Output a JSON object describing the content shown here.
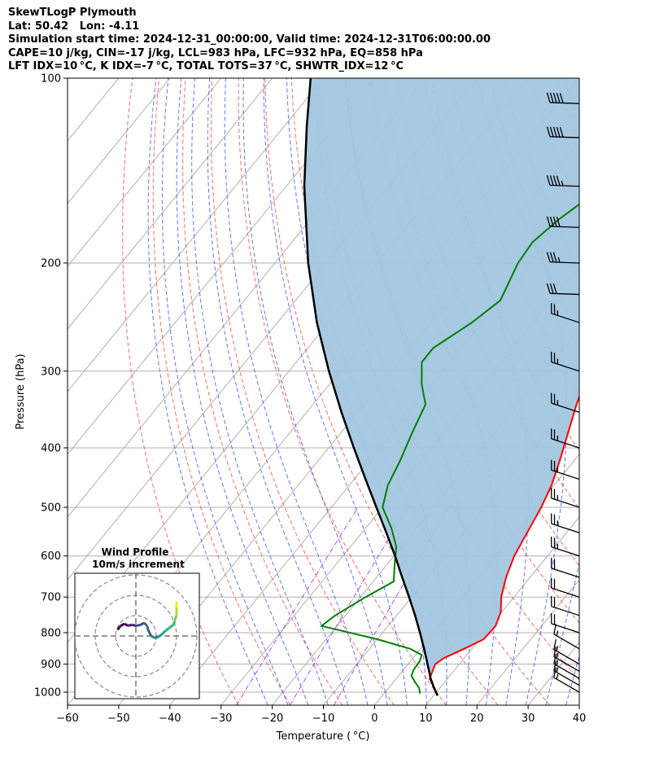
{
  "header": {
    "title": "SkewTLogP Plymouth",
    "location": "Lat: 50.42   Lon: -4.11",
    "times": "Simulation start time: 2024-12-31_00:00:00, Valid time: 2024-12-31T06:00:00.00",
    "indices1": "CAPE=10 j/kg, CIN=-17 j/kg, LCL=983 hPa, LFC=932 hPa, EQ=858 hPa",
    "indices2": "LFT IDX=10 °C, K IDX=-7 °C, TOTAL TOTS=37 °C, SHWTR_IDX=12 °C"
  },
  "chart_data": {
    "type": "line",
    "xlabel": "Temperature ( °C)",
    "ylabel": "Pressure (hPa)",
    "xlim": [
      -60,
      40
    ],
    "ylim": [
      1050,
      100
    ],
    "y_scale": "log",
    "x_ticks": [
      -60,
      -50,
      -40,
      -30,
      -20,
      -10,
      0,
      10,
      20,
      30,
      40
    ],
    "x_tick_labels": [
      "−60",
      "−50",
      "−40",
      "−30",
      "−20",
      "−10",
      "0",
      "10",
      "20",
      "30",
      "40"
    ],
    "y_ticks": [
      1000,
      900,
      800,
      700,
      600,
      500,
      400,
      300,
      200,
      100
    ],
    "grid": true,
    "colors": {
      "temperature": "#ff0000",
      "dewpoint": "#008000",
      "parcel": "#000000",
      "cape_fill": "#a3c6e0",
      "dry_adiabat": "#ff4444",
      "moist_adiabat": "#3344ff",
      "mixing_ratio": "#9933cc",
      "isotherm": "#999999"
    },
    "series": [
      {
        "role": "temperature",
        "points": [
          [
            1013,
            10.8
          ],
          [
            985,
            9.0
          ],
          [
            950,
            6.5
          ],
          [
            900,
            5.3
          ],
          [
            880,
            6.0
          ],
          [
            850,
            8.5
          ],
          [
            820,
            10.8
          ],
          [
            780,
            11.0
          ],
          [
            740,
            9.8
          ],
          [
            700,
            7.5
          ],
          [
            650,
            5.3
          ],
          [
            600,
            3.5
          ],
          [
            550,
            2.3
          ],
          [
            500,
            1.0
          ],
          [
            460,
            -0.5
          ],
          [
            420,
            -2.8
          ],
          [
            380,
            -5.5
          ],
          [
            340,
            -8.5
          ],
          [
            300,
            -11.5
          ],
          [
            270,
            -14.0
          ],
          [
            240,
            -16.5
          ],
          [
            215,
            -19.0
          ],
          [
            195,
            -20.2
          ],
          [
            180,
            -18.8
          ],
          [
            165,
            -15.0
          ],
          [
            150,
            -11.0
          ],
          [
            140,
            -9.5
          ],
          [
            130,
            -8.5
          ],
          [
            115,
            -6.5
          ],
          [
            100,
            -2.5
          ]
        ]
      },
      {
        "role": "dewpoint",
        "points": [
          [
            1005,
            7.0
          ],
          [
            985,
            6.0
          ],
          [
            960,
            4.0
          ],
          [
            940,
            2.5
          ],
          [
            920,
            2.0
          ],
          [
            890,
            1.8
          ],
          [
            870,
            1.2
          ],
          [
            850,
            -2.0
          ],
          [
            820,
            -10.0
          ],
          [
            780,
            -23.0
          ],
          [
            750,
            -22.0
          ],
          [
            700,
            -19.0
          ],
          [
            660,
            -16.0
          ],
          [
            620,
            -18.5
          ],
          [
            580,
            -21.0
          ],
          [
            540,
            -25.0
          ],
          [
            500,
            -30.0
          ],
          [
            460,
            -32.5
          ],
          [
            420,
            -34.0
          ],
          [
            380,
            -36.0
          ],
          [
            340,
            -38.0
          ],
          [
            315,
            -42.0
          ],
          [
            290,
            -45.5
          ],
          [
            275,
            -45.5
          ],
          [
            250,
            -42.0
          ],
          [
            230,
            -40.0
          ],
          [
            200,
            -42.5
          ],
          [
            185,
            -43.0
          ],
          [
            170,
            -41.5
          ],
          [
            150,
            -38.0
          ],
          [
            140,
            -37.0
          ],
          [
            120,
            -34.0
          ],
          [
            110,
            -31.0
          ],
          [
            100,
            -28.0
          ]
        ]
      },
      {
        "role": "parcel",
        "points": [
          [
            1013,
            10.8
          ],
          [
            985,
            8.9
          ],
          [
            950,
            6.7
          ],
          [
            900,
            3.8
          ],
          [
            850,
            0.7
          ],
          [
            800,
            -2.7
          ],
          [
            750,
            -6.4
          ],
          [
            700,
            -10.5
          ],
          [
            650,
            -15.0
          ],
          [
            600,
            -19.8
          ],
          [
            550,
            -25.2
          ],
          [
            500,
            -31.2
          ],
          [
            450,
            -37.8
          ],
          [
            400,
            -45.1
          ],
          [
            350,
            -53.2
          ],
          [
            300,
            -62.2
          ],
          [
            250,
            -72.3
          ],
          [
            200,
            -83.5
          ],
          [
            150,
            -96.5
          ],
          [
            120,
            -105.5
          ],
          [
            100,
            -112.5
          ]
        ]
      }
    ],
    "wind_barbs": {
      "pressures": [
        1000,
        975,
        950,
        925,
        900,
        850,
        800,
        750,
        700,
        650,
        600,
        550,
        500,
        450,
        400,
        350,
        300,
        250,
        225,
        200,
        175,
        150,
        125,
        110
      ],
      "speed_kt": [
        15,
        15,
        15,
        15,
        15,
        15,
        20,
        20,
        20,
        20,
        25,
        25,
        25,
        25,
        25,
        25,
        25,
        25,
        30,
        35,
        40,
        45,
        50,
        50
      ]
    },
    "hodograph": {
      "title": "Wind Profile",
      "subtitle": "10m/s increment",
      "rings_ms": [
        10,
        20,
        30
      ]
    }
  }
}
